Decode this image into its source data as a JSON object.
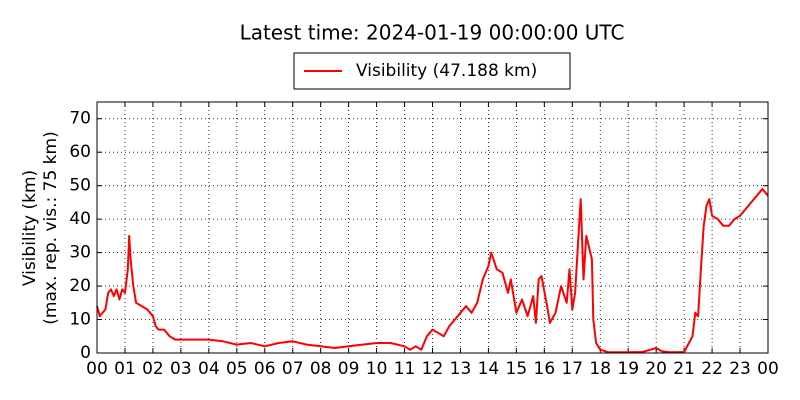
{
  "chart_data": {
    "type": "line",
    "title": "Latest time: 2024-01-19 00:00:00 UTC",
    "ylabel": [
      "Visibility (km)",
      "(max. rep. vis.: 75 km)"
    ],
    "x": [
      0.0,
      0.1,
      0.2,
      0.3,
      0.4,
      0.5,
      0.6,
      0.7,
      0.8,
      0.9,
      1.0,
      1.1,
      1.15,
      1.2,
      1.3,
      1.4,
      1.6,
      1.8,
      2.0,
      2.1,
      2.2,
      2.4,
      2.6,
      2.8,
      3.0,
      3.5,
      4.0,
      4.5,
      5.0,
      5.5,
      6.0,
      6.5,
      7.0,
      7.5,
      8.0,
      8.5,
      9.0,
      9.5,
      10.0,
      10.5,
      11.0,
      11.2,
      11.4,
      11.6,
      11.8,
      12.0,
      12.2,
      12.4,
      12.6,
      12.8,
      13.0,
      13.2,
      13.4,
      13.6,
      13.8,
      14.0,
      14.1,
      14.3,
      14.5,
      14.7,
      14.8,
      15.0,
      15.2,
      15.4,
      15.6,
      15.7,
      15.8,
      15.9,
      16.1,
      16.2,
      16.4,
      16.6,
      16.8,
      16.9,
      17.0,
      17.1,
      17.2,
      17.3,
      17.4,
      17.5,
      17.7,
      17.75,
      17.85,
      18.0,
      18.3,
      19.0,
      19.5,
      19.8,
      20.0,
      20.2,
      20.5,
      21.0,
      21.3,
      21.4,
      21.5,
      21.6,
      21.7,
      21.8,
      21.9,
      22.0,
      22.2,
      22.4,
      22.6,
      22.8,
      23.0,
      23.2,
      23.4,
      23.6,
      23.8,
      24.0
    ],
    "series": [
      {
        "name": "Visibility (47.188 km)",
        "color": "#ff0000",
        "values": [
          14,
          11,
          12,
          13,
          18,
          19,
          17,
          19,
          16,
          19,
          18,
          25,
          35,
          28,
          20,
          15,
          14,
          13,
          11,
          8,
          7,
          7,
          5,
          4,
          4,
          4,
          4,
          3.5,
          2.5,
          3,
          2,
          3,
          3.5,
          2.5,
          2,
          1.5,
          2,
          2.5,
          3,
          3,
          2,
          1,
          2,
          1,
          5,
          7,
          6,
          5,
          8,
          10,
          12,
          14,
          12,
          15,
          22,
          26,
          30,
          25,
          24,
          18,
          22,
          12,
          16,
          11,
          17,
          9,
          22,
          23,
          14,
          9,
          12,
          20,
          15,
          25,
          13,
          18,
          32,
          46,
          22,
          35,
          28,
          10,
          3,
          1,
          0.2,
          0.2,
          0.3,
          1,
          1.5,
          0.5,
          0.2,
          0.3,
          5,
          12,
          11,
          25,
          38,
          44,
          46,
          41,
          40,
          38,
          38,
          40,
          41,
          43,
          45,
          47,
          49,
          47
        ]
      }
    ],
    "xlim": [
      0,
      24
    ],
    "ylim": [
      0,
      75
    ],
    "yticks": [
      0,
      10,
      20,
      30,
      40,
      50,
      60,
      70
    ],
    "xticks": [
      {
        "value": 0,
        "label": "00"
      },
      {
        "value": 1,
        "label": "01"
      },
      {
        "value": 2,
        "label": "02"
      },
      {
        "value": 3,
        "label": "03"
      },
      {
        "value": 4,
        "label": "04"
      },
      {
        "value": 5,
        "label": "05"
      },
      {
        "value": 6,
        "label": "06"
      },
      {
        "value": 7,
        "label": "07"
      },
      {
        "value": 8,
        "label": "08"
      },
      {
        "value": 9,
        "label": "09"
      },
      {
        "value": 10,
        "label": "10"
      },
      {
        "value": 11,
        "label": "11"
      },
      {
        "value": 12,
        "label": "12"
      },
      {
        "value": 13,
        "label": "13"
      },
      {
        "value": 14,
        "label": "14"
      },
      {
        "value": 15,
        "label": "15"
      },
      {
        "value": 16,
        "label": "16"
      },
      {
        "value": 17,
        "label": "17"
      },
      {
        "value": 18,
        "label": "18"
      },
      {
        "value": 19,
        "label": "19"
      },
      {
        "value": 20,
        "label": "20"
      },
      {
        "value": 21,
        "label": "21"
      },
      {
        "value": 22,
        "label": "22"
      },
      {
        "value": 23,
        "label": "23"
      },
      {
        "value": 24,
        "label": "00"
      }
    ],
    "grid": true,
    "legend": "top"
  }
}
